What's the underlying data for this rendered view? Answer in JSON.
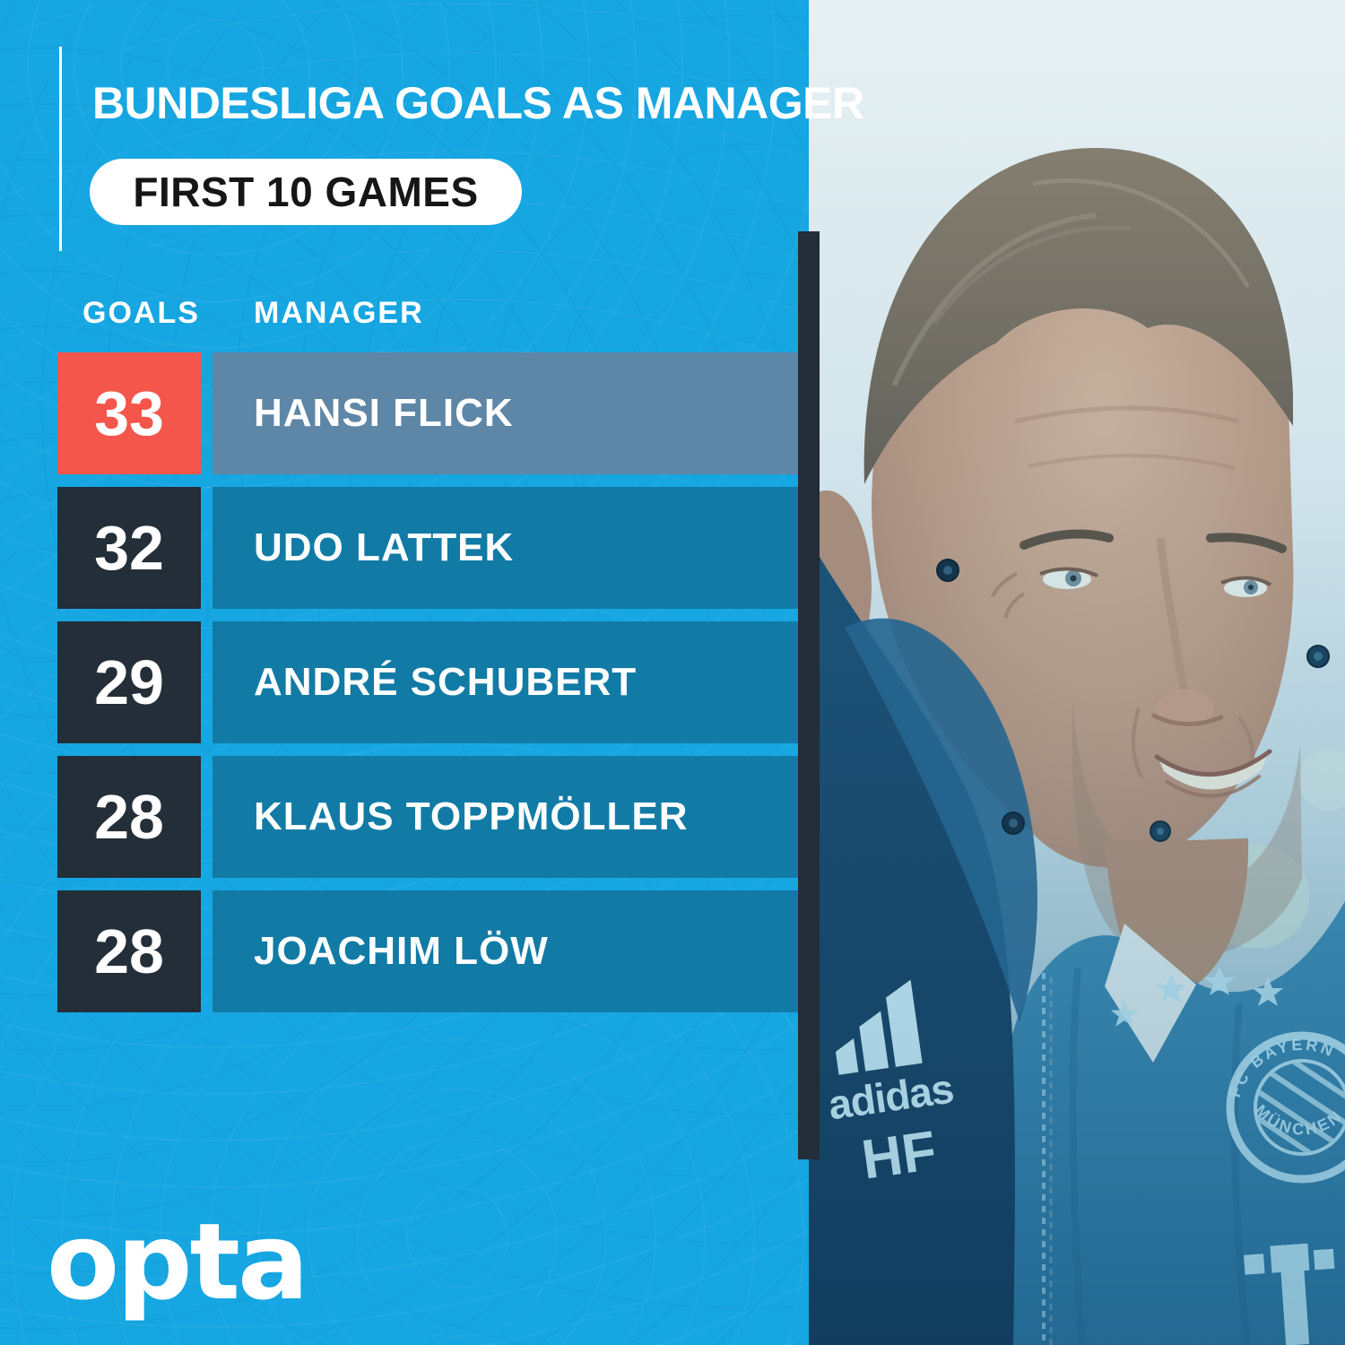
{
  "header": {
    "title": "BUNDESLIGA GOALS AS MANAGER",
    "subtitle": "FIRST 10 GAMES"
  },
  "table": {
    "goals_header": "GOALS",
    "manager_header": "MANAGER",
    "rows": [
      {
        "goals": "33",
        "manager": "HANSI FLICK",
        "highlight": true
      },
      {
        "goals": "32",
        "manager": "UDO LATTEK",
        "highlight": false
      },
      {
        "goals": "29",
        "manager": "ANDRÉ SCHUBERT",
        "highlight": false
      },
      {
        "goals": "28",
        "manager": "KLAUS TOPPMÖLLER",
        "highlight": false
      },
      {
        "goals": "28",
        "manager": "JOACHIM LÖW",
        "highlight": false
      }
    ]
  },
  "branding": {
    "logo_text": "opta"
  },
  "photo": {
    "jacket_brand": "adidas",
    "jacket_initials": "HF",
    "crest_text_top": "FC BAYERN",
    "crest_text_bottom": "MÜNCHEN"
  },
  "colors": {
    "background": "#16A6E2",
    "accent_red": "#F4564C",
    "dark": "#232E38",
    "row1_bar": "#5E86A7",
    "row_bar": "#117BA6",
    "pill_text": "#161616"
  },
  "chart_data": {
    "type": "table",
    "title": "BUNDESLIGA GOALS AS MANAGER",
    "subtitle": "FIRST 10 GAMES",
    "columns": [
      "GOALS",
      "MANAGER"
    ],
    "rows": [
      [
        33,
        "HANSI FLICK"
      ],
      [
        32,
        "UDO LATTEK"
      ],
      [
        29,
        "ANDRÉ SCHUBERT"
      ],
      [
        28,
        "KLAUS TOPPMÖLLER"
      ],
      [
        28,
        "JOACHIM LÖW"
      ]
    ],
    "highlighted_row": "HANSI FLICK",
    "highlight_color": "#F4564C"
  }
}
